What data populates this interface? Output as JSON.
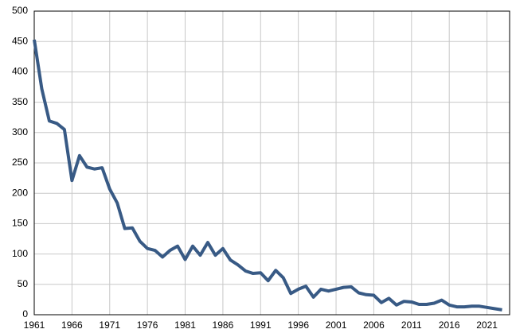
{
  "chart_data": {
    "type": "line",
    "x": [
      1961,
      1962,
      1963,
      1964,
      1965,
      1966,
      1967,
      1968,
      1969,
      1970,
      1971,
      1972,
      1973,
      1974,
      1975,
      1976,
      1977,
      1978,
      1979,
      1980,
      1981,
      1982,
      1983,
      1984,
      1985,
      1986,
      1987,
      1988,
      1989,
      1990,
      1991,
      1992,
      1993,
      1994,
      1995,
      1996,
      1997,
      1998,
      1999,
      2000,
      2001,
      2002,
      2003,
      2004,
      2005,
      2006,
      2007,
      2008,
      2009,
      2010,
      2011,
      2012,
      2013,
      2014,
      2015,
      2016,
      2017,
      2018,
      2019,
      2020,
      2021,
      2022,
      2023
    ],
    "values": [
      453,
      372,
      319,
      315,
      305,
      221,
      262,
      243,
      240,
      242,
      207,
      184,
      142,
      143,
      121,
      109,
      106,
      95,
      106,
      113,
      91,
      113,
      98,
      119,
      98,
      109,
      90,
      82,
      72,
      68,
      69,
      56,
      73,
      61,
      35,
      42,
      47,
      29,
      42,
      39,
      42,
      45,
      46,
      36,
      33,
      32,
      20,
      27,
      16,
      22,
      21,
      17,
      17,
      19,
      24,
      16,
      13,
      13,
      14,
      14,
      12,
      10,
      8
    ],
    "color": "#385a85",
    "xlim": [
      1961,
      2024
    ],
    "xticks": [
      1961,
      1966,
      1971,
      1976,
      1981,
      1986,
      1991,
      1996,
      2001,
      2006,
      2011,
      2016,
      2021
    ],
    "ylim": [
      0,
      500
    ],
    "yticks": [
      0,
      50,
      100,
      150,
      200,
      250,
      300,
      350,
      400,
      450,
      500
    ],
    "grid": true
  }
}
